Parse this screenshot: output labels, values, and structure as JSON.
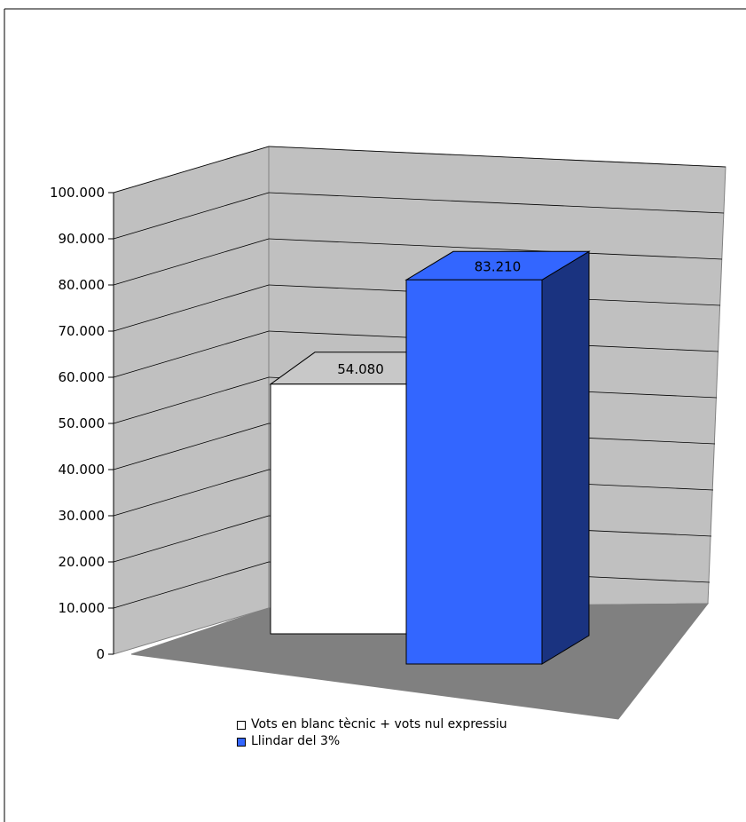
{
  "chart_data": {
    "type": "bar",
    "title": "",
    "xlabel": "",
    "ylabel": "",
    "ylim": [
      0,
      100000
    ],
    "y_ticks": [
      "0",
      "10.000",
      "20.000",
      "30.000",
      "40.000",
      "50.000",
      "60.000",
      "70.000",
      "80.000",
      "90.000",
      "100.000"
    ],
    "grid": true,
    "legend_position": "bottom",
    "style": "3d-column",
    "series": [
      {
        "name": "Vots en blanc tècnic + vots nul expressiu",
        "value": 54080,
        "label": "54.080",
        "color": "#ffffff"
      },
      {
        "name": "Llindar del 3%",
        "value": 83210,
        "label": "83.210",
        "color": "#3366ff"
      }
    ],
    "colors": {
      "back_wall": "#c0c0c0",
      "floor": "#808080",
      "blue_side": "#1a3380"
    }
  }
}
